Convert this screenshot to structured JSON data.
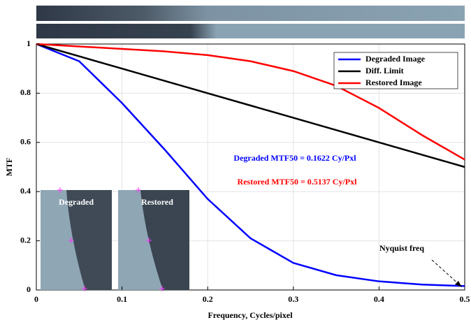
{
  "chart_data": {
    "type": "line",
    "xlabel": "Frequency, Cycles/pixel",
    "ylabel": "MTF",
    "x": [
      0,
      0.05,
      0.1,
      0.15,
      0.2,
      0.25,
      0.3,
      0.35,
      0.4,
      0.45,
      0.5
    ],
    "series": [
      {
        "name": "Degraded Image",
        "color": "#0000ff",
        "values": [
          1,
          0.93,
          0.76,
          0.57,
          0.37,
          0.21,
          0.11,
          0.06,
          0.035,
          0.022,
          0.016
        ]
      },
      {
        "name": "Diff. Limit",
        "color": "#000000",
        "values": [
          1,
          0.95,
          0.9,
          0.85,
          0.8,
          0.75,
          0.7,
          0.65,
          0.6,
          0.55,
          0.5
        ]
      },
      {
        "name": "Restored Image",
        "color": "#ff0000",
        "values": [
          1,
          0.99,
          0.98,
          0.97,
          0.955,
          0.93,
          0.89,
          0.83,
          0.74,
          0.63,
          0.53
        ]
      }
    ],
    "xlim": [
      0,
      0.5
    ],
    "xticks": [
      0,
      0.1,
      0.2,
      0.3,
      0.4,
      0.5
    ],
    "ylim": [
      0,
      1
    ],
    "yticks": [
      0,
      0.2,
      0.4,
      0.6,
      0.8,
      1
    ],
    "grid": true,
    "legend": "upper right",
    "annotations": [
      {
        "text": "Degraded MTF50 = 0.1622 Cy/Pxl",
        "color": "#0000ff"
      },
      {
        "text": "Restored MTF50 = 0.5137 Cy/Pxl",
        "color": "#ff0000"
      },
      {
        "text": "Nyquist freq",
        "color": "#000000"
      }
    ],
    "insets": [
      "Degraded",
      "Restored"
    ]
  }
}
